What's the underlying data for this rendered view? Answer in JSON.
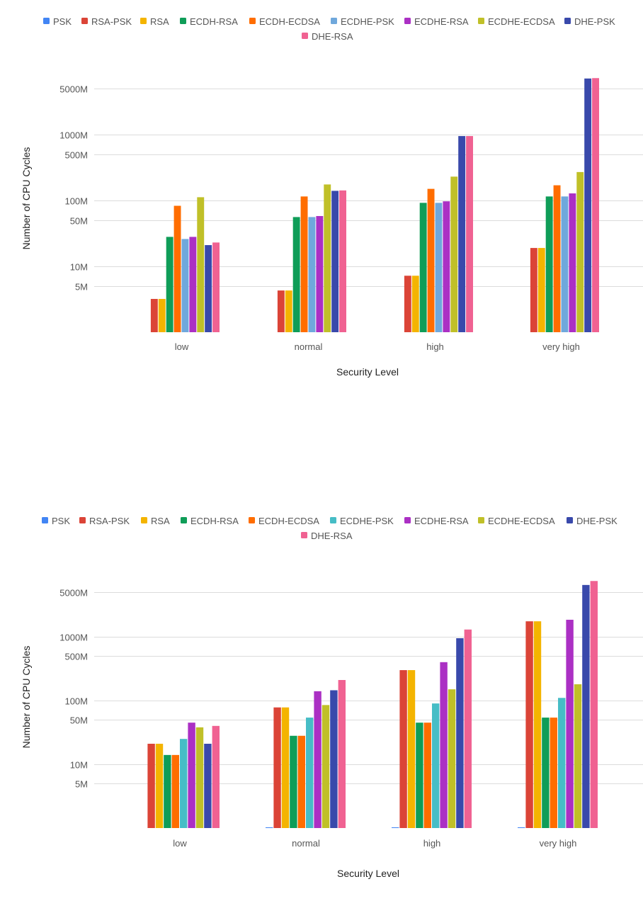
{
  "colors": {
    "PSK": "#4285f4",
    "RSA-PSK": "#db4437",
    "RSA": "#f4b400",
    "ECDH-RSA": "#0f9d58",
    "ECDH-ECDSA": "#ff6d00",
    "ECDHE-PSK_top": "#6fa8dc",
    "ECDHE-PSK_bottom": "#46bdc6",
    "ECDHE-RSA": "#ab30c4",
    "ECDHE-ECDSA": "#c0c028",
    "DHE-PSK": "#3949ab",
    "DHE-RSA": "#f06292"
  },
  "chart_data": [
    {
      "type": "bar",
      "title": "",
      "xlabel": "Security Level",
      "ylabel": "Number of CPU Cycles",
      "y_scale": "log",
      "ylim": [
        1000000,
        8000000000
      ],
      "y_ticks": [
        5000000,
        10000000,
        50000000,
        100000000,
        500000000,
        1000000000,
        5000000000
      ],
      "y_tick_labels": [
        "5M",
        "10M",
        "50M",
        "100M",
        "500M",
        "1000M",
        "5000M"
      ],
      "legend_position": "top",
      "categories": [
        "low",
        "normal",
        "high",
        "very high"
      ],
      "series": [
        {
          "name": "PSK",
          "color_key": "PSK",
          "values": [
            null,
            null,
            null,
            null
          ]
        },
        {
          "name": "RSA-PSK",
          "color_key": "RSA-PSK",
          "values": [
            3200000,
            4300000,
            7200000,
            19000000
          ]
        },
        {
          "name": "RSA",
          "color_key": "RSA",
          "values": [
            3200000,
            4300000,
            7200000,
            19000000
          ]
        },
        {
          "name": "ECDH-RSA",
          "color_key": "ECDH-RSA",
          "values": [
            28000000,
            56000000,
            92000000,
            115000000
          ]
        },
        {
          "name": "ECDH-ECDSA",
          "color_key": "ECDH-ECDSA",
          "values": [
            83000000,
            115000000,
            150000000,
            170000000
          ]
        },
        {
          "name": "ECDHE-PSK",
          "color_key": "ECDHE-PSK_top",
          "values": [
            26000000,
            56000000,
            92000000,
            115000000
          ]
        },
        {
          "name": "ECDHE-RSA",
          "color_key": "ECDHE-RSA",
          "values": [
            28000000,
            58000000,
            97000000,
            128000000
          ]
        },
        {
          "name": "ECDHE-ECDSA",
          "color_key": "ECDHE-ECDSA",
          "values": [
            112000000,
            175000000,
            230000000,
            270000000
          ]
        },
        {
          "name": "DHE-PSK",
          "color_key": "DHE-PSK",
          "values": [
            21000000,
            140000000,
            950000000,
            7100000000
          ]
        },
        {
          "name": "DHE-RSA",
          "color_key": "DHE-RSA",
          "values": [
            23000000,
            142000000,
            950000000,
            7200000000
          ]
        }
      ]
    },
    {
      "type": "bar",
      "title": "",
      "xlabel": "Security Level",
      "ylabel": "Number of CPU Cycles",
      "y_scale": "log",
      "ylim": [
        1000000,
        8000000000
      ],
      "y_ticks": [
        5000000,
        10000000,
        50000000,
        100000000,
        500000000,
        1000000000,
        5000000000
      ],
      "y_tick_labels": [
        "5M",
        "10M",
        "50M",
        "100M",
        "500M",
        "1000M",
        "5000M"
      ],
      "legend_position": "top",
      "categories": [
        "low",
        "normal",
        "high",
        "very high"
      ],
      "series": [
        {
          "name": "PSK",
          "color_key": "PSK",
          "values": [
            null,
            1000000,
            1000000,
            1000000
          ]
        },
        {
          "name": "RSA-PSK",
          "color_key": "RSA-PSK",
          "values": [
            21000000,
            78000000,
            300000000,
            1750000000
          ]
        },
        {
          "name": "RSA",
          "color_key": "RSA",
          "values": [
            21000000,
            78000000,
            300000000,
            1750000000
          ]
        },
        {
          "name": "ECDH-RSA",
          "color_key": "ECDH-RSA",
          "values": [
            14000000,
            28000000,
            45000000,
            54000000
          ]
        },
        {
          "name": "ECDH-ECDSA",
          "color_key": "ECDH-ECDSA",
          "values": [
            14000000,
            28000000,
            45000000,
            54000000
          ]
        },
        {
          "name": "ECDHE-PSK",
          "color_key": "ECDHE-PSK_bottom",
          "values": [
            25000000,
            54000000,
            90000000,
            110000000
          ]
        },
        {
          "name": "ECDHE-RSA",
          "color_key": "ECDHE-RSA",
          "values": [
            45000000,
            140000000,
            400000000,
            1850000000
          ]
        },
        {
          "name": "ECDHE-ECDSA",
          "color_key": "ECDHE-ECDSA",
          "values": [
            38000000,
            85000000,
            150000000,
            180000000
          ]
        },
        {
          "name": "DHE-PSK",
          "color_key": "DHE-PSK",
          "values": [
            21000000,
            145000000,
            950000000,
            6500000000
          ]
        },
        {
          "name": "DHE-RSA",
          "color_key": "DHE-RSA",
          "values": [
            40000000,
            210000000,
            1300000000,
            7500000000
          ]
        }
      ]
    }
  ]
}
